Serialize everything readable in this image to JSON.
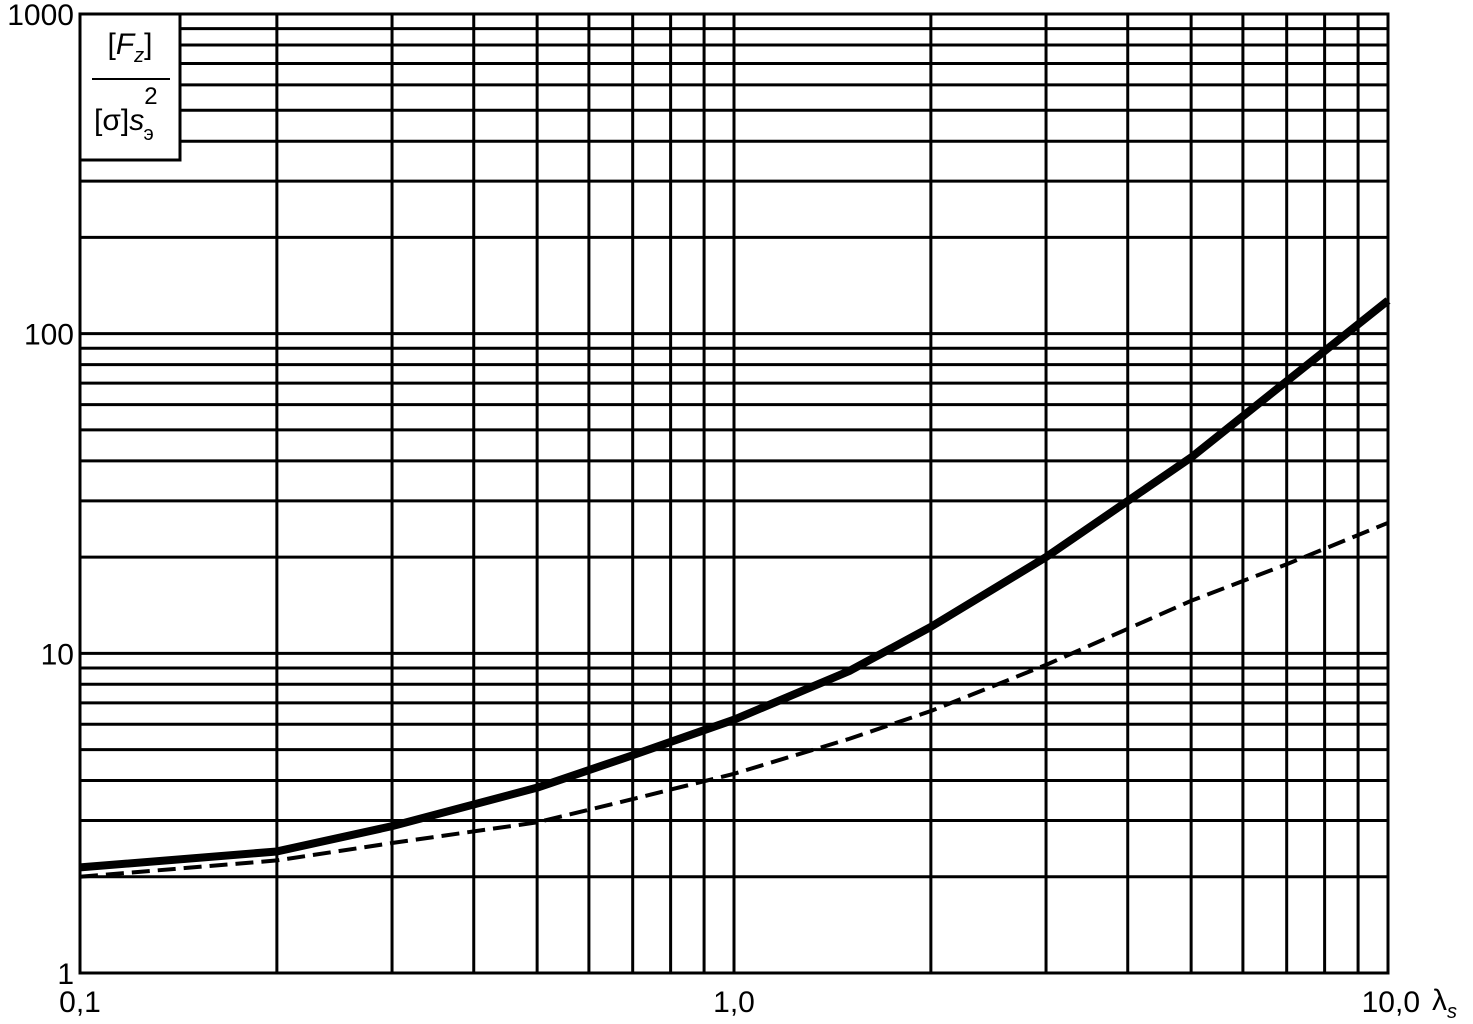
{
  "chart_data": {
    "type": "line",
    "xscale": "log",
    "yscale": "log",
    "grid": true,
    "xlim": [
      0.1,
      10
    ],
    "ylim": [
      1,
      1000
    ],
    "xticks": [
      {
        "value": 0.1,
        "label": "0,1"
      },
      {
        "value": 1,
        "label": "1,0"
      },
      {
        "value": 10,
        "label": "10,0"
      }
    ],
    "yticks": [
      1,
      10,
      100,
      1000
    ],
    "xlabel": [
      "λ",
      "s"
    ],
    "ylabel": {
      "numerator": [
        "[",
        "F",
        "z",
        "]"
      ],
      "denominator": [
        "[σ]",
        "s",
        "2",
        "э"
      ]
    },
    "x": [
      0.1,
      0.2,
      0.3,
      0.5,
      0.7,
      1,
      1.5,
      2,
      3,
      5,
      7,
      10
    ],
    "series": [
      {
        "color": "#000000",
        "style": "solid",
        "values": [
          2.14,
          2.4,
          2.88,
          3.8,
          4.8,
          6.2,
          8.8,
          12.1,
          20,
          41,
          71,
          127
        ]
      },
      {
        "color": "#000000",
        "style": "dashed",
        "values": [
          2.0,
          2.25,
          2.55,
          2.96,
          3.5,
          4.2,
          5.4,
          6.6,
          9.2,
          14.6,
          19,
          25.6
        ]
      }
    ]
  }
}
